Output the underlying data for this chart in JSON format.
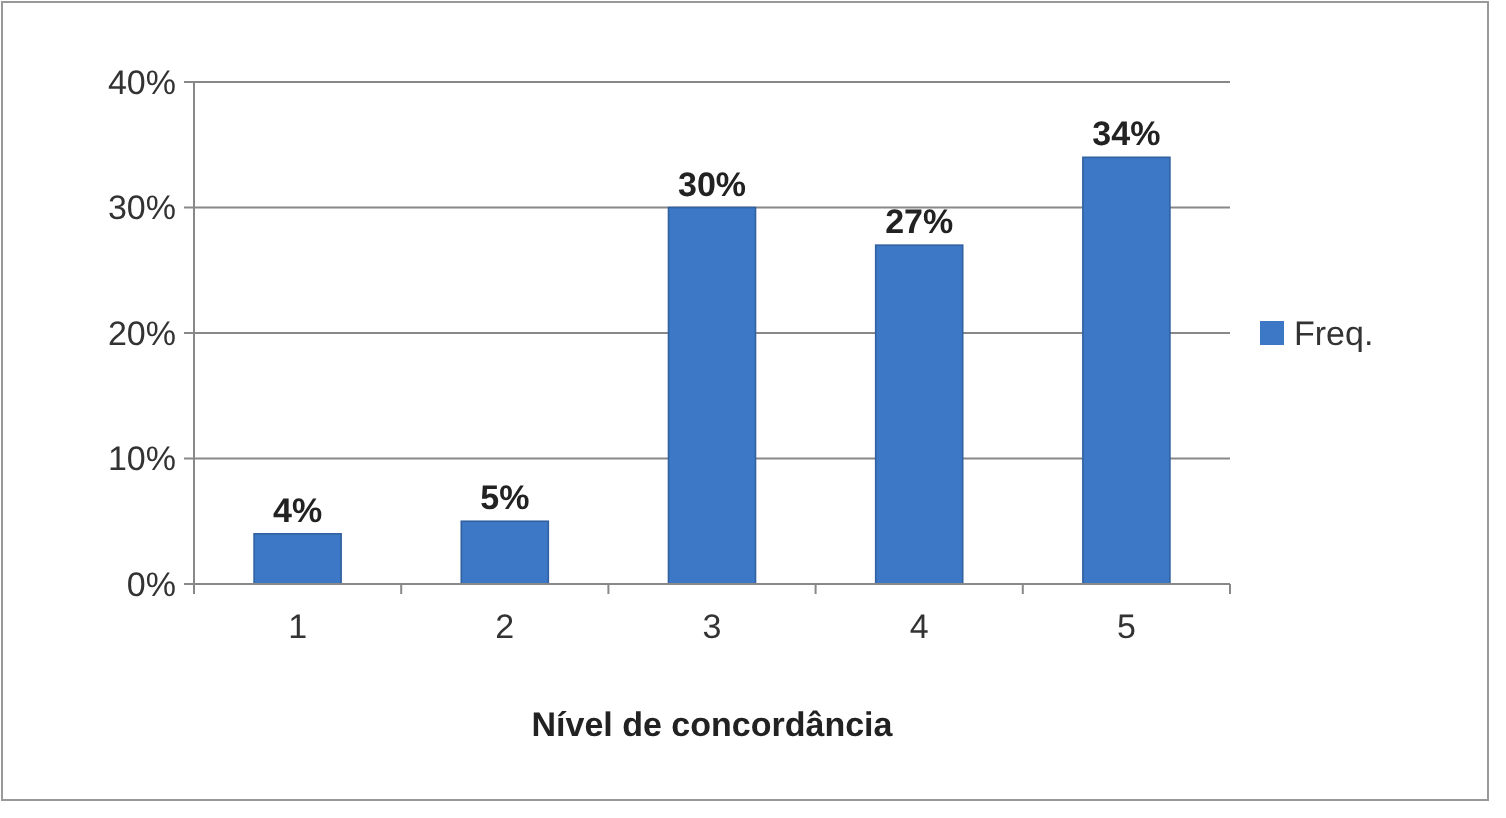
{
  "chart_data": {
    "type": "bar",
    "xlabel": "Nível de concordância",
    "categories": [
      "1",
      "2",
      "3",
      "4",
      "5"
    ],
    "series": [
      {
        "name": "Freq.",
        "color": "#3d78c6",
        "values": [
          4,
          5,
          30,
          27,
          34
        ],
        "value_labels": [
          "4%",
          "5%",
          "30%",
          "27%",
          "34%"
        ]
      }
    ],
    "ylim": [
      0,
      40
    ],
    "yticks": [
      {
        "value": 0,
        "label": "0%"
      },
      {
        "value": 10,
        "label": "10%"
      },
      {
        "value": 20,
        "label": "20%"
      },
      {
        "value": 30,
        "label": "30%"
      },
      {
        "value": 40,
        "label": "40%"
      }
    ],
    "grid": "y",
    "legend": "right"
  }
}
